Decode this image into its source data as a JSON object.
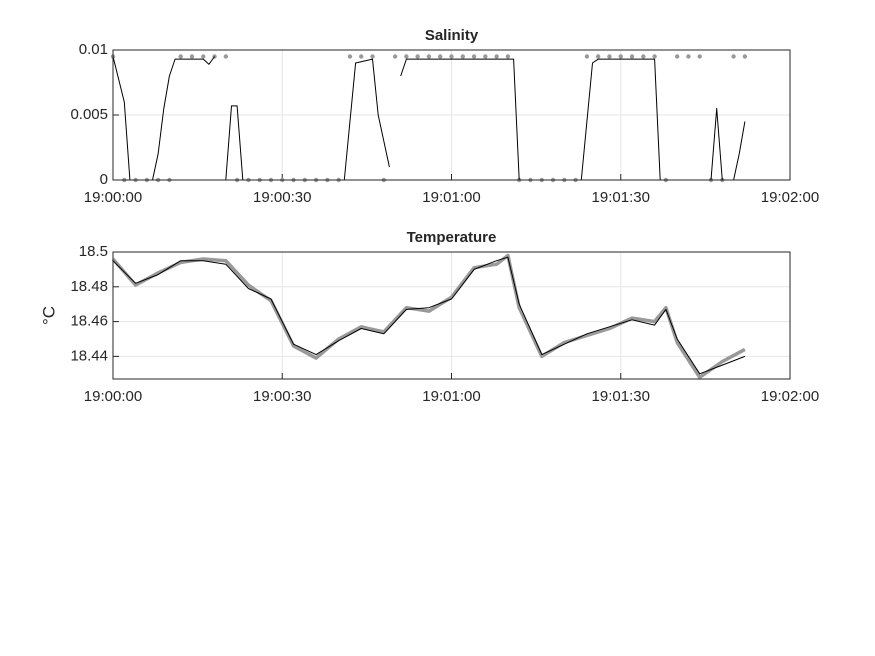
{
  "chart_data": [
    {
      "type": "line",
      "title": "Salinity",
      "xlim": [
        "19:00:00",
        "19:02:00"
      ],
      "xticks": [
        "19:00:00",
        "19:00:30",
        "19:01:00",
        "19:01:30",
        "19:02:00"
      ],
      "ylim": [
        0,
        0.01
      ],
      "yticks": [
        0,
        0.005,
        0.01
      ],
      "grid": true,
      "series": [
        {
          "color": "#999999",
          "style": "dots",
          "x": [
            "19:00:00",
            "19:00:02",
            "19:00:04",
            "19:00:06",
            "19:00:08",
            "19:00:10",
            "19:00:12",
            "19:00:14",
            "19:00:16",
            "19:00:18",
            "19:00:20",
            "19:00:22",
            "19:00:24",
            "19:00:26",
            "19:00:28",
            "19:00:30",
            "19:00:32",
            "19:00:34",
            "19:00:36",
            "19:00:38",
            "19:00:40",
            "19:00:42",
            "19:00:44",
            "19:00:46",
            "19:00:48",
            "19:00:50",
            "19:00:52",
            "19:00:54",
            "19:00:56",
            "19:00:58",
            "19:01:00",
            "19:01:02",
            "19:01:04",
            "19:01:06",
            "19:01:08",
            "19:01:10",
            "19:01:12",
            "19:01:14",
            "19:01:16",
            "19:01:18",
            "19:01:20",
            "19:01:22",
            "19:01:24",
            "19:01:26",
            "19:01:28",
            "19:01:30",
            "19:01:32",
            "19:01:34",
            "19:01:36",
            "19:01:38",
            "19:01:40",
            "19:01:42",
            "19:01:44",
            "19:01:46",
            "19:01:48",
            "19:01:50",
            "19:01:52"
          ],
          "values": [
            0.0095,
            0,
            0,
            0,
            0,
            0,
            0.0095,
            0.0095,
            0.0095,
            0.0095,
            0.0095,
            0,
            0,
            0,
            0,
            0,
            0,
            0,
            0,
            0,
            0,
            0.0095,
            0.0095,
            0.0095,
            0,
            0.0095,
            0.0095,
            0.0095,
            0.0095,
            0.0095,
            0.0095,
            0.0095,
            0.0095,
            0.0095,
            0.0095,
            0.0095,
            0,
            0,
            0,
            0,
            0,
            0,
            0.0095,
            0.0095,
            0.0095,
            0.0095,
            0.0095,
            0.0095,
            0.0095,
            0,
            0.0095,
            0.0095,
            0.0095,
            0,
            0,
            0.0095,
            0.0095
          ]
        },
        {
          "color": "#000000",
          "style": "line",
          "x": [
            "19:00:00",
            "19:00:02",
            "19:00:03",
            "19:00:07",
            "19:00:08",
            "19:00:09",
            "19:00:10",
            "19:00:11",
            "19:00:16",
            "19:00:17",
            "19:00:18",
            "19:00:19",
            "19:00:20",
            "19:00:21",
            "19:00:22",
            "19:00:23",
            "19:00:41",
            "19:00:43",
            "19:00:46",
            "19:00:47",
            "19:00:49",
            "19:00:50",
            "19:00:51",
            "19:00:52",
            "19:01:11",
            "19:01:12",
            "19:01:23",
            "19:01:25",
            "19:01:26",
            "19:01:36",
            "19:01:37",
            "19:01:46",
            "19:01:47",
            "19:01:48",
            "19:01:50",
            "19:01:51",
            "19:01:52"
          ],
          "values": [
            0.0095,
            0.006,
            0,
            0,
            0.002,
            0.0055,
            0.008,
            0.0093,
            0.0093,
            0.0089,
            0.0095,
            null,
            0,
            0.0057,
            0.0057,
            0,
            0,
            0.009,
            0.0093,
            0.005,
            0.001,
            null,
            0.008,
            0.0093,
            0.0093,
            0,
            0,
            0.009,
            0.0093,
            0.0093,
            0,
            0,
            0.0055,
            0,
            0,
            0.002,
            0.0045
          ]
        }
      ]
    },
    {
      "type": "line",
      "title": "Temperature",
      "ylabel": "°C",
      "xlim": [
        "19:00:00",
        "19:02:00"
      ],
      "xticks": [
        "19:00:00",
        "19:00:30",
        "19:01:00",
        "19:01:30",
        "19:02:00"
      ],
      "ylim": [
        18.427,
        18.5
      ],
      "yticks": [
        18.44,
        18.46,
        18.48,
        18.5
      ],
      "grid": true,
      "series": [
        {
          "color": "#999999",
          "style": "thick",
          "x": [
            "19:00:00",
            "19:00:04",
            "19:00:08",
            "19:00:12",
            "19:00:16",
            "19:00:20",
            "19:00:24",
            "19:00:28",
            "19:00:32",
            "19:00:36",
            "19:00:40",
            "19:00:44",
            "19:00:48",
            "19:00:52",
            "19:00:56",
            "19:01:00",
            "19:01:04",
            "19:01:08",
            "19:01:10",
            "19:01:12",
            "19:01:16",
            "19:01:20",
            "19:01:24",
            "19:01:28",
            "19:01:32",
            "19:01:36",
            "19:01:38",
            "19:01:40",
            "19:01:44",
            "19:01:48",
            "19:01:52"
          ],
          "values": [
            18.496,
            18.481,
            18.488,
            18.494,
            18.496,
            18.495,
            18.481,
            18.472,
            18.446,
            18.439,
            18.45,
            18.457,
            18.454,
            18.468,
            18.466,
            18.474,
            18.491,
            18.493,
            18.498,
            18.468,
            18.44,
            18.448,
            18.452,
            18.456,
            18.462,
            18.46,
            18.468,
            18.448,
            18.428,
            18.437,
            18.444
          ]
        },
        {
          "color": "#000000",
          "style": "line",
          "x": [
            "19:00:00",
            "19:00:04",
            "19:00:08",
            "19:00:12",
            "19:00:16",
            "19:00:20",
            "19:00:24",
            "19:00:28",
            "19:00:32",
            "19:00:36",
            "19:00:40",
            "19:00:44",
            "19:00:48",
            "19:00:52",
            "19:00:56",
            "19:01:00",
            "19:01:04",
            "19:01:08",
            "19:01:10",
            "19:01:12",
            "19:01:16",
            "19:01:20",
            "19:01:24",
            "19:01:28",
            "19:01:32",
            "19:01:36",
            "19:01:38",
            "19:01:40",
            "19:01:44",
            "19:01:48",
            "19:01:52"
          ],
          "values": [
            18.495,
            18.482,
            18.487,
            18.495,
            18.495,
            18.493,
            18.479,
            18.473,
            18.447,
            18.441,
            18.449,
            18.456,
            18.453,
            18.467,
            18.468,
            18.473,
            18.49,
            18.495,
            18.497,
            18.47,
            18.441,
            18.447,
            18.453,
            18.457,
            18.461,
            18.458,
            18.467,
            18.45,
            18.43,
            18.435,
            18.44
          ]
        }
      ]
    }
  ]
}
